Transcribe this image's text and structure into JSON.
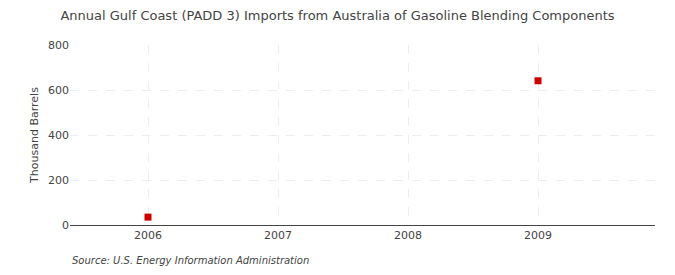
{
  "chart_data": {
    "type": "scatter",
    "title": "Annual Gulf Coast (PADD 3) Imports from Australia of Gasoline Blending Components",
    "ylabel": "Thousand Barrels",
    "source": "Source: U.S. Energy Information Administration",
    "x": [
      2006,
      2009
    ],
    "values": [
      35,
      641
    ],
    "color": "#CC0000",
    "marker": "square",
    "xlim": [
      2005.4,
      2009.9
    ],
    "ylim": [
      0,
      800
    ],
    "xticks": [
      2006,
      2007,
      2008,
      2009
    ],
    "yticks": [
      0,
      200,
      400,
      600,
      800
    ],
    "grid": true
  }
}
